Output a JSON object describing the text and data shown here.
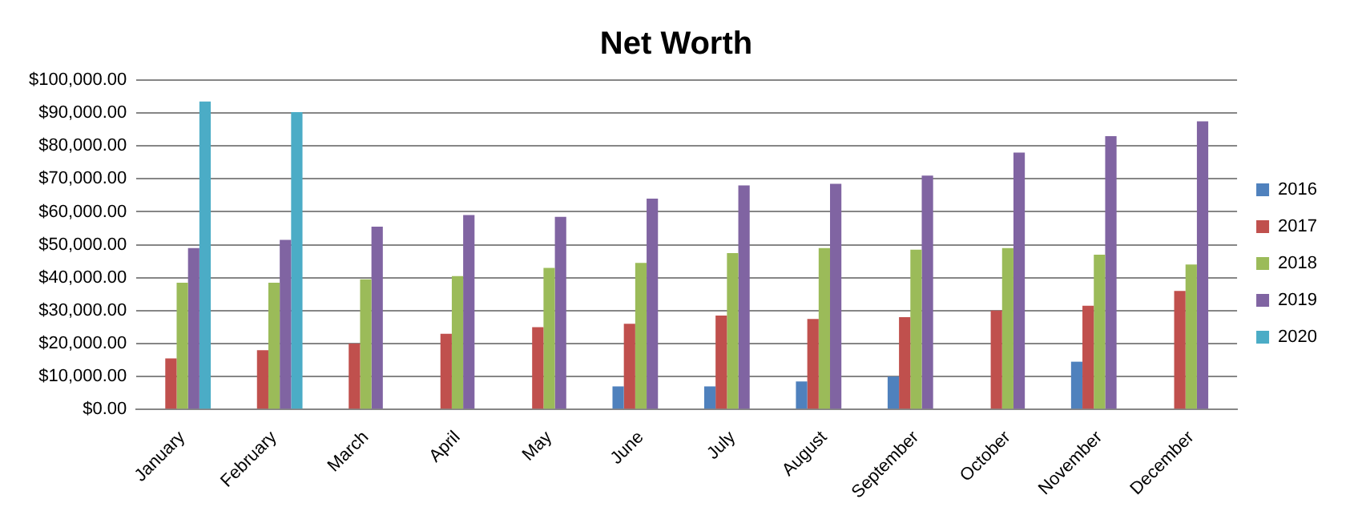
{
  "chart_data": {
    "type": "bar",
    "title": "Net Worth",
    "categories": [
      "January",
      "February",
      "March",
      "April",
      "May",
      "June",
      "July",
      "August",
      "September",
      "October",
      "November",
      "December"
    ],
    "series": [
      {
        "name": "2016",
        "color": "#4f81bd",
        "values": [
          null,
          null,
          null,
          null,
          null,
          7000,
          7000,
          8500,
          10000,
          null,
          14500,
          null
        ]
      },
      {
        "name": "2017",
        "color": "#c0504d",
        "values": [
          15500,
          18000,
          20000,
          23000,
          25000,
          26000,
          28500,
          27500,
          28000,
          30000,
          31500,
          36000
        ]
      },
      {
        "name": "2018",
        "color": "#9bbb59",
        "values": [
          38500,
          38500,
          39500,
          40500,
          43000,
          44500,
          47500,
          49000,
          48500,
          49000,
          47000,
          44000
        ]
      },
      {
        "name": "2019",
        "color": "#8064a2",
        "values": [
          49000,
          51500,
          55500,
          59000,
          58500,
          64000,
          68000,
          68500,
          71000,
          78000,
          83000,
          87500
        ]
      },
      {
        "name": "2020",
        "color": "#4bacc6",
        "values": [
          93500,
          90300,
          null,
          null,
          null,
          null,
          null,
          null,
          null,
          null,
          null,
          null
        ]
      }
    ],
    "ylim": [
      0,
      100000
    ],
    "yticks": [
      {
        "value": 0,
        "label": "$0.00"
      },
      {
        "value": 10000,
        "label": "$10,000.00"
      },
      {
        "value": 20000,
        "label": "$20,000.00"
      },
      {
        "value": 30000,
        "label": "$30,000.00"
      },
      {
        "value": 40000,
        "label": "$40,000.00"
      },
      {
        "value": 50000,
        "label": "$50,000.00"
      },
      {
        "value": 60000,
        "label": "$60,000.00"
      },
      {
        "value": 70000,
        "label": "$70,000.00"
      },
      {
        "value": 80000,
        "label": "$80,000.00"
      },
      {
        "value": 90000,
        "label": "$90,000.00"
      },
      {
        "value": 100000,
        "label": "$100,000.00"
      }
    ],
    "grid": "y",
    "legend": "right"
  }
}
